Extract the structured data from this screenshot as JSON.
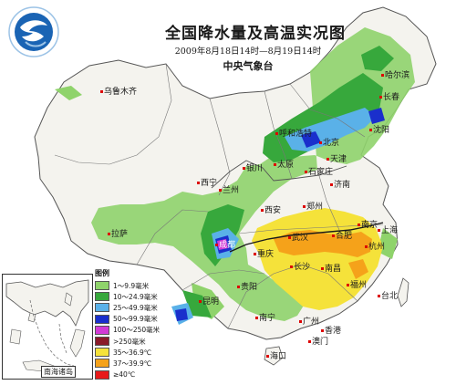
{
  "title": "全国降水量及高温实况图",
  "time_range": "2009年8月18日14时—8月19日14时",
  "agency": "中央气象台",
  "inset_label": "南海诸岛",
  "legend": {
    "title": "图例",
    "items": [
      {
        "label": "1～9.9毫米",
        "color": "#8fd36b"
      },
      {
        "label": "10～24.9毫米",
        "color": "#37a83c"
      },
      {
        "label": "25～49.9毫米",
        "color": "#5ab1e8"
      },
      {
        "label": "50～99.9毫米",
        "color": "#1a2fcc"
      },
      {
        "label": "100～250毫米",
        "color": "#d23ad6"
      },
      {
        "label": ">250毫米",
        "color": "#8a1a2a"
      },
      {
        "label": "35～36.9℃",
        "color": "#f5e23a"
      },
      {
        "label": "37～39.9℃",
        "color": "#f5a21a"
      },
      {
        "label": "≥40℃",
        "color": "#e81a1a"
      }
    ]
  },
  "cities": [
    {
      "name": "乌鲁木齐"
    },
    {
      "name": "哈尔滨"
    },
    {
      "name": "长春"
    },
    {
      "name": "沈阳"
    },
    {
      "name": "呼和浩特"
    },
    {
      "name": "北京"
    },
    {
      "name": "天津"
    },
    {
      "name": "石家庄"
    },
    {
      "name": "太原"
    },
    {
      "name": "银川"
    },
    {
      "name": "西宁"
    },
    {
      "name": "兰州"
    },
    {
      "name": "济南"
    },
    {
      "name": "郑州"
    },
    {
      "name": "西安"
    },
    {
      "name": "南京"
    },
    {
      "name": "上海"
    },
    {
      "name": "合肥"
    },
    {
      "name": "武汉"
    },
    {
      "name": "杭州"
    },
    {
      "name": "成都"
    },
    {
      "name": "重庆"
    },
    {
      "name": "拉萨"
    },
    {
      "name": "长沙"
    },
    {
      "name": "南昌"
    },
    {
      "name": "贵阳"
    },
    {
      "name": "福州"
    },
    {
      "name": "台北"
    },
    {
      "name": "昆明"
    },
    {
      "name": "南宁"
    },
    {
      "name": "广州"
    },
    {
      "name": "香港"
    },
    {
      "name": "澳门"
    },
    {
      "name": "海口"
    }
  ]
}
